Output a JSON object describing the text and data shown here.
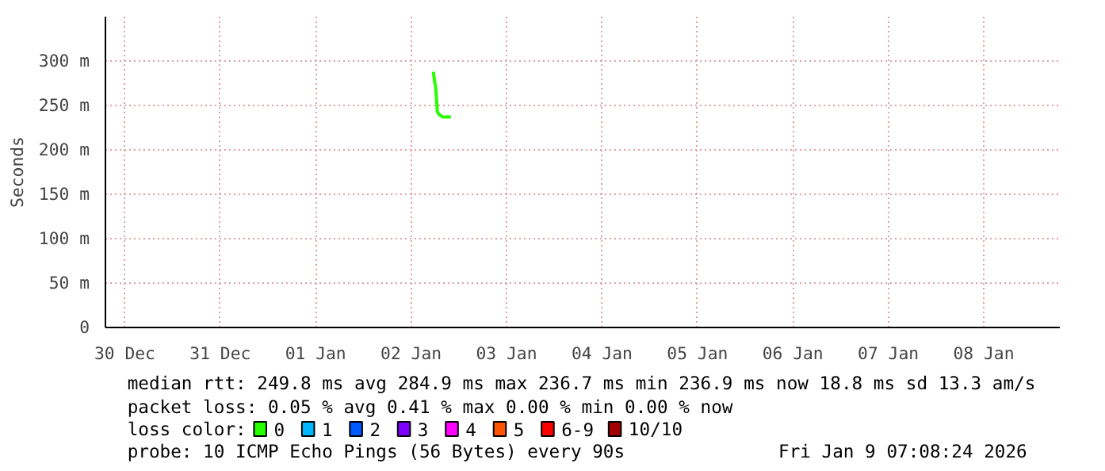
{
  "chart_data": {
    "type": "line",
    "ylabel": "Seconds",
    "legend_title": "loss color:",
    "x": [
      "2026-01-02T17:36",
      "2026-01-02T17:48",
      "2026-01-02T18:12",
      "2026-01-02T18:36",
      "2026-01-02T19:00",
      "2026-01-02T20:00",
      "2026-01-02T22:00"
    ],
    "series": [
      {
        "name": "0",
        "color": "#26ff00",
        "values": [
          288,
          280,
          270,
          243,
          240,
          237,
          237
        ]
      },
      {
        "name": "1",
        "color": "#00b8ff",
        "values": [
          null,
          null,
          null,
          null,
          null,
          null,
          null
        ]
      },
      {
        "name": "2",
        "color": "#0059ff",
        "values": [
          null,
          null,
          null,
          null,
          null,
          null,
          null
        ]
      },
      {
        "name": "3",
        "color": "#7e00ff",
        "values": [
          null,
          null,
          null,
          null,
          null,
          null,
          null
        ]
      },
      {
        "name": "4",
        "color": "#ff00ff",
        "values": [
          null,
          null,
          null,
          null,
          null,
          null,
          null
        ]
      },
      {
        "name": "5",
        "color": "#ff5500",
        "values": [
          null,
          null,
          null,
          null,
          null,
          null,
          null
        ]
      },
      {
        "name": "6-9",
        "color": "#ff0000",
        "values": [
          null,
          null,
          null,
          null,
          null,
          null,
          null
        ]
      },
      {
        "name": "10/10",
        "color": "#a10000",
        "values": [
          null,
          null,
          null,
          null,
          null,
          null,
          null
        ]
      }
    ],
    "xlim": [
      "2025-12-30T07:08",
      "2026-01-09T07:08"
    ],
    "xticks": [
      {
        "value": "2025-12-30T12:00",
        "label": "30 Dec"
      },
      {
        "value": "2025-12-31T12:00",
        "label": "31 Dec"
      },
      {
        "value": "2026-01-01T12:00",
        "label": "01 Jan"
      },
      {
        "value": "2026-01-02T12:00",
        "label": "02 Jan"
      },
      {
        "value": "2026-01-03T12:00",
        "label": "03 Jan"
      },
      {
        "value": "2026-01-04T12:00",
        "label": "04 Jan"
      },
      {
        "value": "2026-01-05T12:00",
        "label": "05 Jan"
      },
      {
        "value": "2026-01-06T12:00",
        "label": "06 Jan"
      },
      {
        "value": "2026-01-07T12:00",
        "label": "07 Jan"
      },
      {
        "value": "2026-01-08T12:00",
        "label": "08 Jan"
      }
    ],
    "ylim": [
      0,
      350
    ],
    "yticks": [
      0,
      {
        "value": 50,
        "label": "50 m"
      },
      {
        "value": 100,
        "label": "100 m"
      },
      {
        "value": 150,
        "label": "150 m"
      },
      {
        "value": 200,
        "label": "200 m"
      },
      {
        "value": 250,
        "label": "250 m"
      },
      {
        "value": 300,
        "label": "300 m"
      }
    ],
    "grid": true,
    "legend": "bottom",
    "marker": "none",
    "line_style": "solid",
    "annotations": [
      "median rtt:  249.8 ms avg  284.9 ms max  236.7 ms min  236.9 ms now  18.8 ms sd  13.3   am/s",
      "packet loss: 0.05 % avg  0.41 % max  0.00 % min  0.00 % now",
      "probe:       10 ICMP Echo Pings (56 Bytes) every 90s",
      "Fri Jan  9 07:08:24 2026"
    ]
  }
}
